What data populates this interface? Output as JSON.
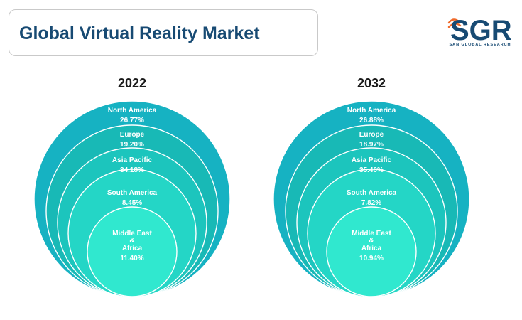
{
  "title": "Global Virtual Reality Market",
  "logo": {
    "text": "SGR",
    "subtext": "SAN GLOBAL RESEARCH"
  },
  "colors": {
    "title": "#174a73",
    "ring_outer": "#16b2c2",
    "ring_2": "#18b9b6",
    "ring_3": "#1cc5bd",
    "ring_4": "#24d6c6",
    "ring_inner": "#30e8cf"
  },
  "chart_data": [
    {
      "type": "nested-circles",
      "title": "2022",
      "categories": [
        "North America",
        "Europe",
        "Asia Pacific",
        "South America",
        "Middle East\n&\nAfrica"
      ],
      "values": [
        26.77,
        19.2,
        34.18,
        8.45,
        11.4
      ],
      "value_labels": [
        "26.77%",
        "19.20%",
        "34.18%",
        "8.45%",
        "11.40%"
      ]
    },
    {
      "type": "nested-circles",
      "title": "2032",
      "categories": [
        "North America",
        "Europe",
        "Asia Pacific",
        "South America",
        "Middle East\n&\nAfrica"
      ],
      "values": [
        26.88,
        18.97,
        35.4,
        7.82,
        10.94
      ],
      "value_labels": [
        "26.88%",
        "18.97%",
        "35.40%",
        "7.82%",
        "10.94%"
      ]
    }
  ]
}
